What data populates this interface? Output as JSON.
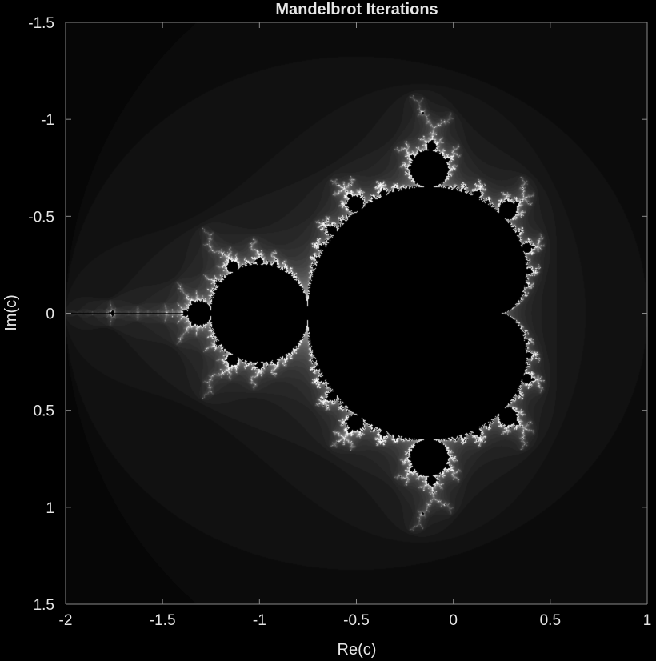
{
  "chart_data": {
    "type": "heatmap",
    "title": "Mandelbrot Iterations",
    "xlabel": "Re(c)",
    "ylabel": "Im(c)",
    "xlim": [
      -2,
      1
    ],
    "ylim": [
      -1.5,
      1.5
    ],
    "y_axis_reversed": true,
    "grid": false,
    "x_ticks": [
      {
        "value": -2,
        "label": "-2"
      },
      {
        "value": -1.5,
        "label": "-1.5"
      },
      {
        "value": -1,
        "label": "-1"
      },
      {
        "value": -0.5,
        "label": "-0.5"
      },
      {
        "value": 0,
        "label": "0"
      },
      {
        "value": 0.5,
        "label": "0.5"
      },
      {
        "value": 1,
        "label": "1"
      }
    ],
    "y_ticks": [
      {
        "value": -1.5,
        "label": "-1.5"
      },
      {
        "value": -1,
        "label": "-1"
      },
      {
        "value": -0.5,
        "label": "-0.5"
      },
      {
        "value": 0,
        "label": "0"
      },
      {
        "value": 0.5,
        "label": "0.5"
      },
      {
        "value": 1,
        "label": "1"
      },
      {
        "value": 1.5,
        "label": "1.5"
      }
    ],
    "colormap": "gray",
    "interior_color": "#000000",
    "max_iterations": 100
  }
}
